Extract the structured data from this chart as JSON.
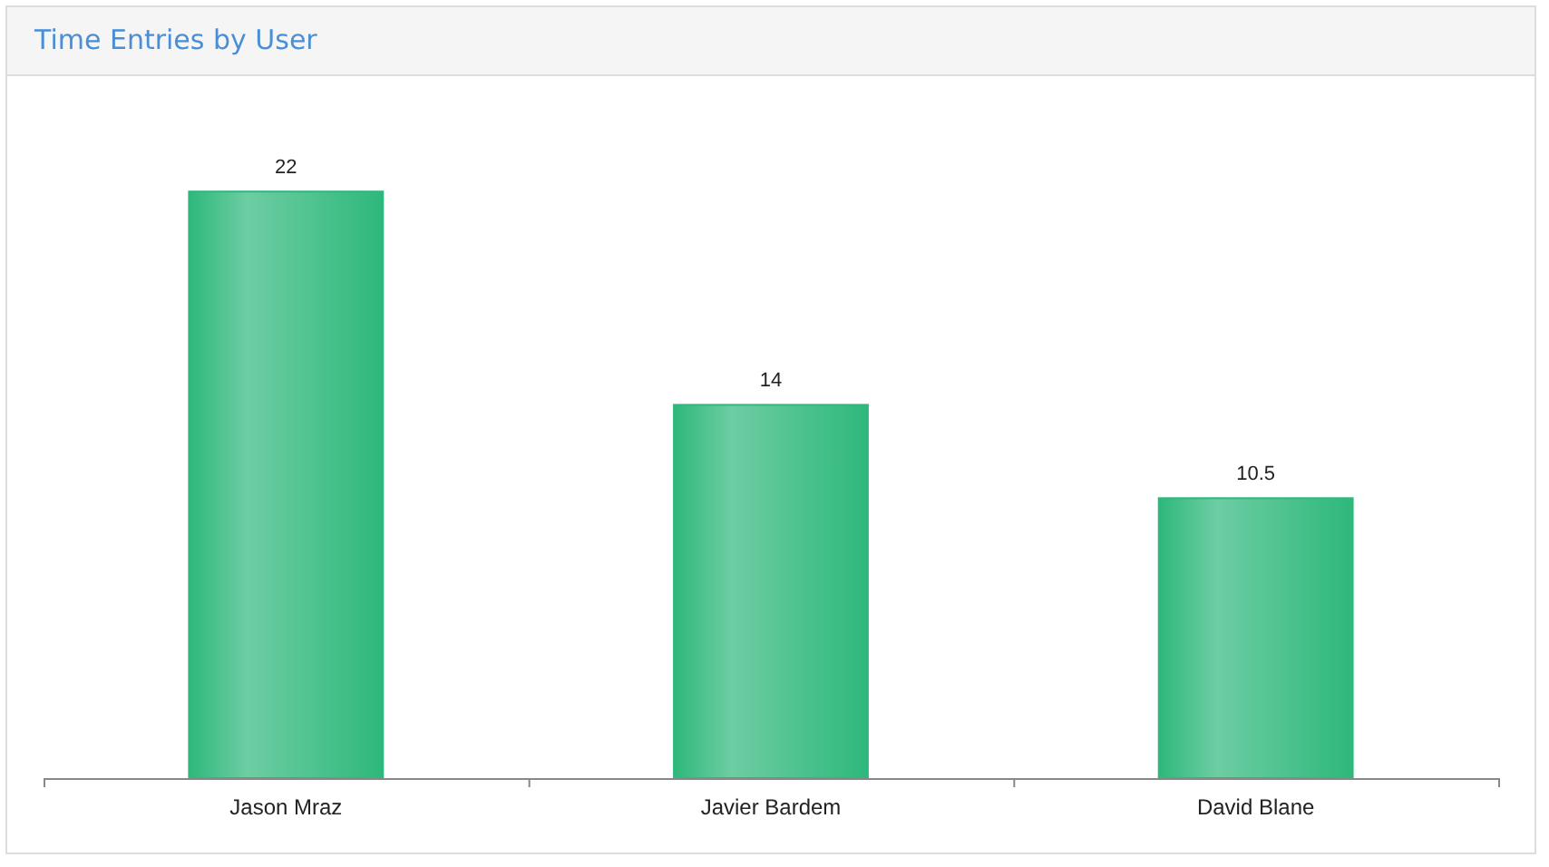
{
  "chart_data": {
    "type": "bar",
    "title": "Time Entries by User",
    "categories": [
      "Jason Mraz",
      "Javier Bardem",
      "David Blane"
    ],
    "values": [
      22,
      14,
      10.5
    ],
    "color": "#2eb87b",
    "data_labels": true,
    "grid": false
  }
}
